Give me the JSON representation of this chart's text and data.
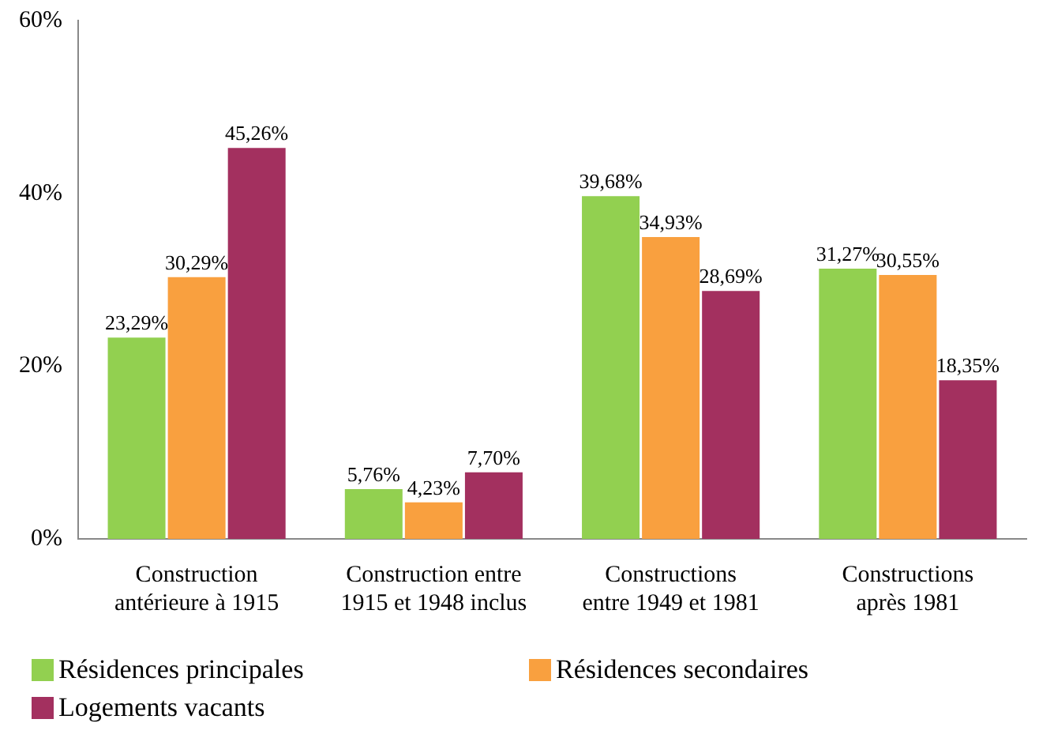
{
  "chart_data": {
    "type": "bar",
    "categories": [
      "Construction\nantérieure à 1915",
      "Construction entre\n1915 et 1948 inclus",
      "Constructions\nentre 1949 et 1981",
      "Constructions\naprès 1981"
    ],
    "series": [
      {
        "name": "Résidences principales",
        "color": "#92d050",
        "values": [
          23.29,
          5.76,
          39.68,
          31.27
        ],
        "value_labels": [
          "23,29%",
          "5,76%",
          "39,68%",
          "31,27%"
        ]
      },
      {
        "name": "Résidences secondaires",
        "color": "#f9a03f",
        "values": [
          30.29,
          4.23,
          34.93,
          30.55
        ],
        "value_labels": [
          "30,29%",
          "4,23%",
          "34,93%",
          "30,55%"
        ]
      },
      {
        "name": "Logements vacants",
        "color": "#a3305f",
        "values": [
          45.26,
          7.7,
          28.69,
          18.35
        ],
        "value_labels": [
          "45,26%",
          "7,70%",
          "28,69%",
          "18,35%"
        ]
      }
    ],
    "ylim": [
      0,
      60
    ],
    "yticks": [
      {
        "value": 0,
        "label": "0%"
      },
      {
        "value": 20,
        "label": "20%"
      },
      {
        "value": 40,
        "label": "40%"
      },
      {
        "value": 60,
        "label": "60%"
      }
    ],
    "grid": false,
    "legend": "bottom"
  }
}
